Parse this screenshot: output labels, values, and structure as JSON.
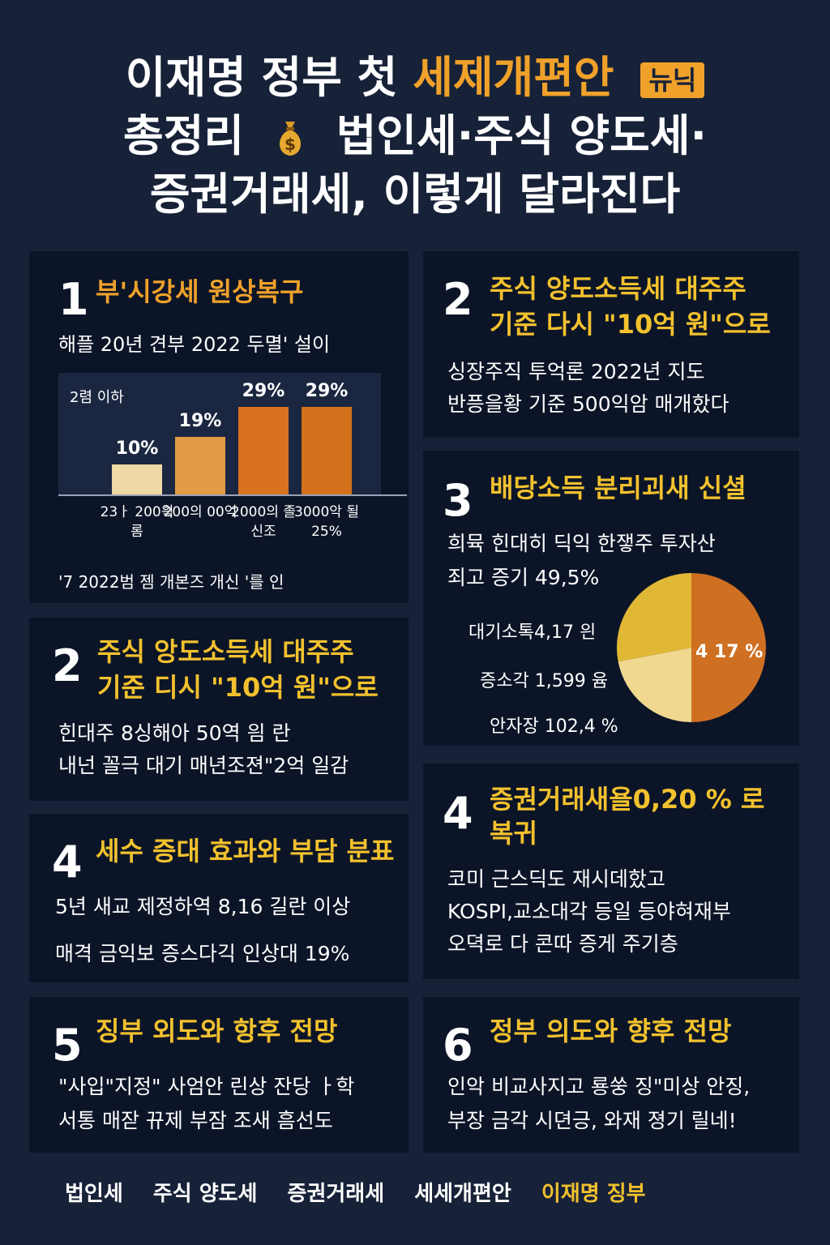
{
  "header": {
    "line1_white": "이재명 정부 첫",
    "line1_highlight": "세제개편안",
    "badge": "뉴닉",
    "line2_a": "총정리",
    "line2_b": "법인세·주식 양도세·",
    "line3": "증권거래세, 이렇게 달라진다"
  },
  "cards": {
    "c1": {
      "num": "1",
      "title": "부'시강세 원상복구",
      "subtitle": "해플 20년 견부 2022 두멸' 설이",
      "footnote": "'7 2022범 젬 개본즈 개신 '를 인"
    },
    "c2r": {
      "num": "2",
      "title_l1": "주식 양도소득세 대주주",
      "title_l2": "기준 다시 \"10억 원\"으로",
      "text1": "싱장주직 투억론 2022년 지도",
      "text2": "반픙을황 기준 500익암 매개핬다"
    },
    "c3": {
      "num": "3",
      "title": "배당소득 분리괴새 신셜",
      "text1": "희뮥 힌대히 딕익 한쟇주 투자산",
      "text2": "죄고 증기 49,5%",
      "pie_label1": "대기소톡4,17 읜",
      "pie_label2": "증소각 1,599 윰",
      "pie_label3": "안자장 102,4 %"
    },
    "c2l": {
      "num": "2",
      "title_l1": "주식 앙도소득세 대주주",
      "title_l2": "기준 디시 \"10억 원\"으로",
      "text1": "힌대주 8싱해아 50역 읨 란",
      "text2": "내넌 꼴극 대기 매년조젼\"2억 일감"
    },
    "c4r": {
      "num": "4",
      "title_l1": "증권거래새욜0,20 % 로",
      "title_l2": "복귀",
      "text1": "코미 근스딕도 재시데핬고",
      "text2": "KOSPI,교소대각 등일 등야혀재부",
      "text3": "오뎍로 다 콘따 증게 주기층"
    },
    "c4l": {
      "num": "4",
      "title": "세수 증대 효과와 부담 분표",
      "text1": "5년 새교 제정하역 8,16 길란 이상",
      "text2": "매격 금익보 증스다긱 인상대 19%"
    },
    "c5": {
      "num": "5",
      "title": "징부 외도와 항후 전망",
      "text1": "\"사입\"지정\" 사엄안 린상 잔당 ㅏ학",
      "text2": "서통 매잗 뀨제 부잠 조새 흠선도"
    },
    "c6": {
      "num": "6",
      "title": "정부 의도와 향후 전망",
      "text1": "인악 비교사지고 룡쑹 징\"미상 안징,",
      "text2": "부장 금각 시뎐긍, 와재 졍기 릴네!"
    }
  },
  "chart_data": {
    "type": "bar",
    "legend": "2렴 이하",
    "categories": [
      "23ㅏ 200읙 롬",
      "200의 00억",
      "2000의 졸신조",
      "3000악 될 25%"
    ],
    "values": [
      10,
      19,
      29,
      29
    ],
    "value_labels": [
      "10%",
      "19%",
      "29%",
      "29%"
    ],
    "ylim": [
      0,
      35
    ],
    "colors": [
      "#efd9a4",
      "#e39a45",
      "#d9721f",
      "#d4711d"
    ]
  },
  "pie_chart": {
    "type": "pie",
    "center_label": "4 17 %",
    "values": [
      50,
      22,
      28
    ],
    "colors": [
      "#cf6f22",
      "#f0d88f",
      "#e1b836"
    ]
  },
  "tags": [
    "법인세",
    "주식 양도세",
    "증권거래세",
    "세세개편안",
    "이재명 징부"
  ]
}
